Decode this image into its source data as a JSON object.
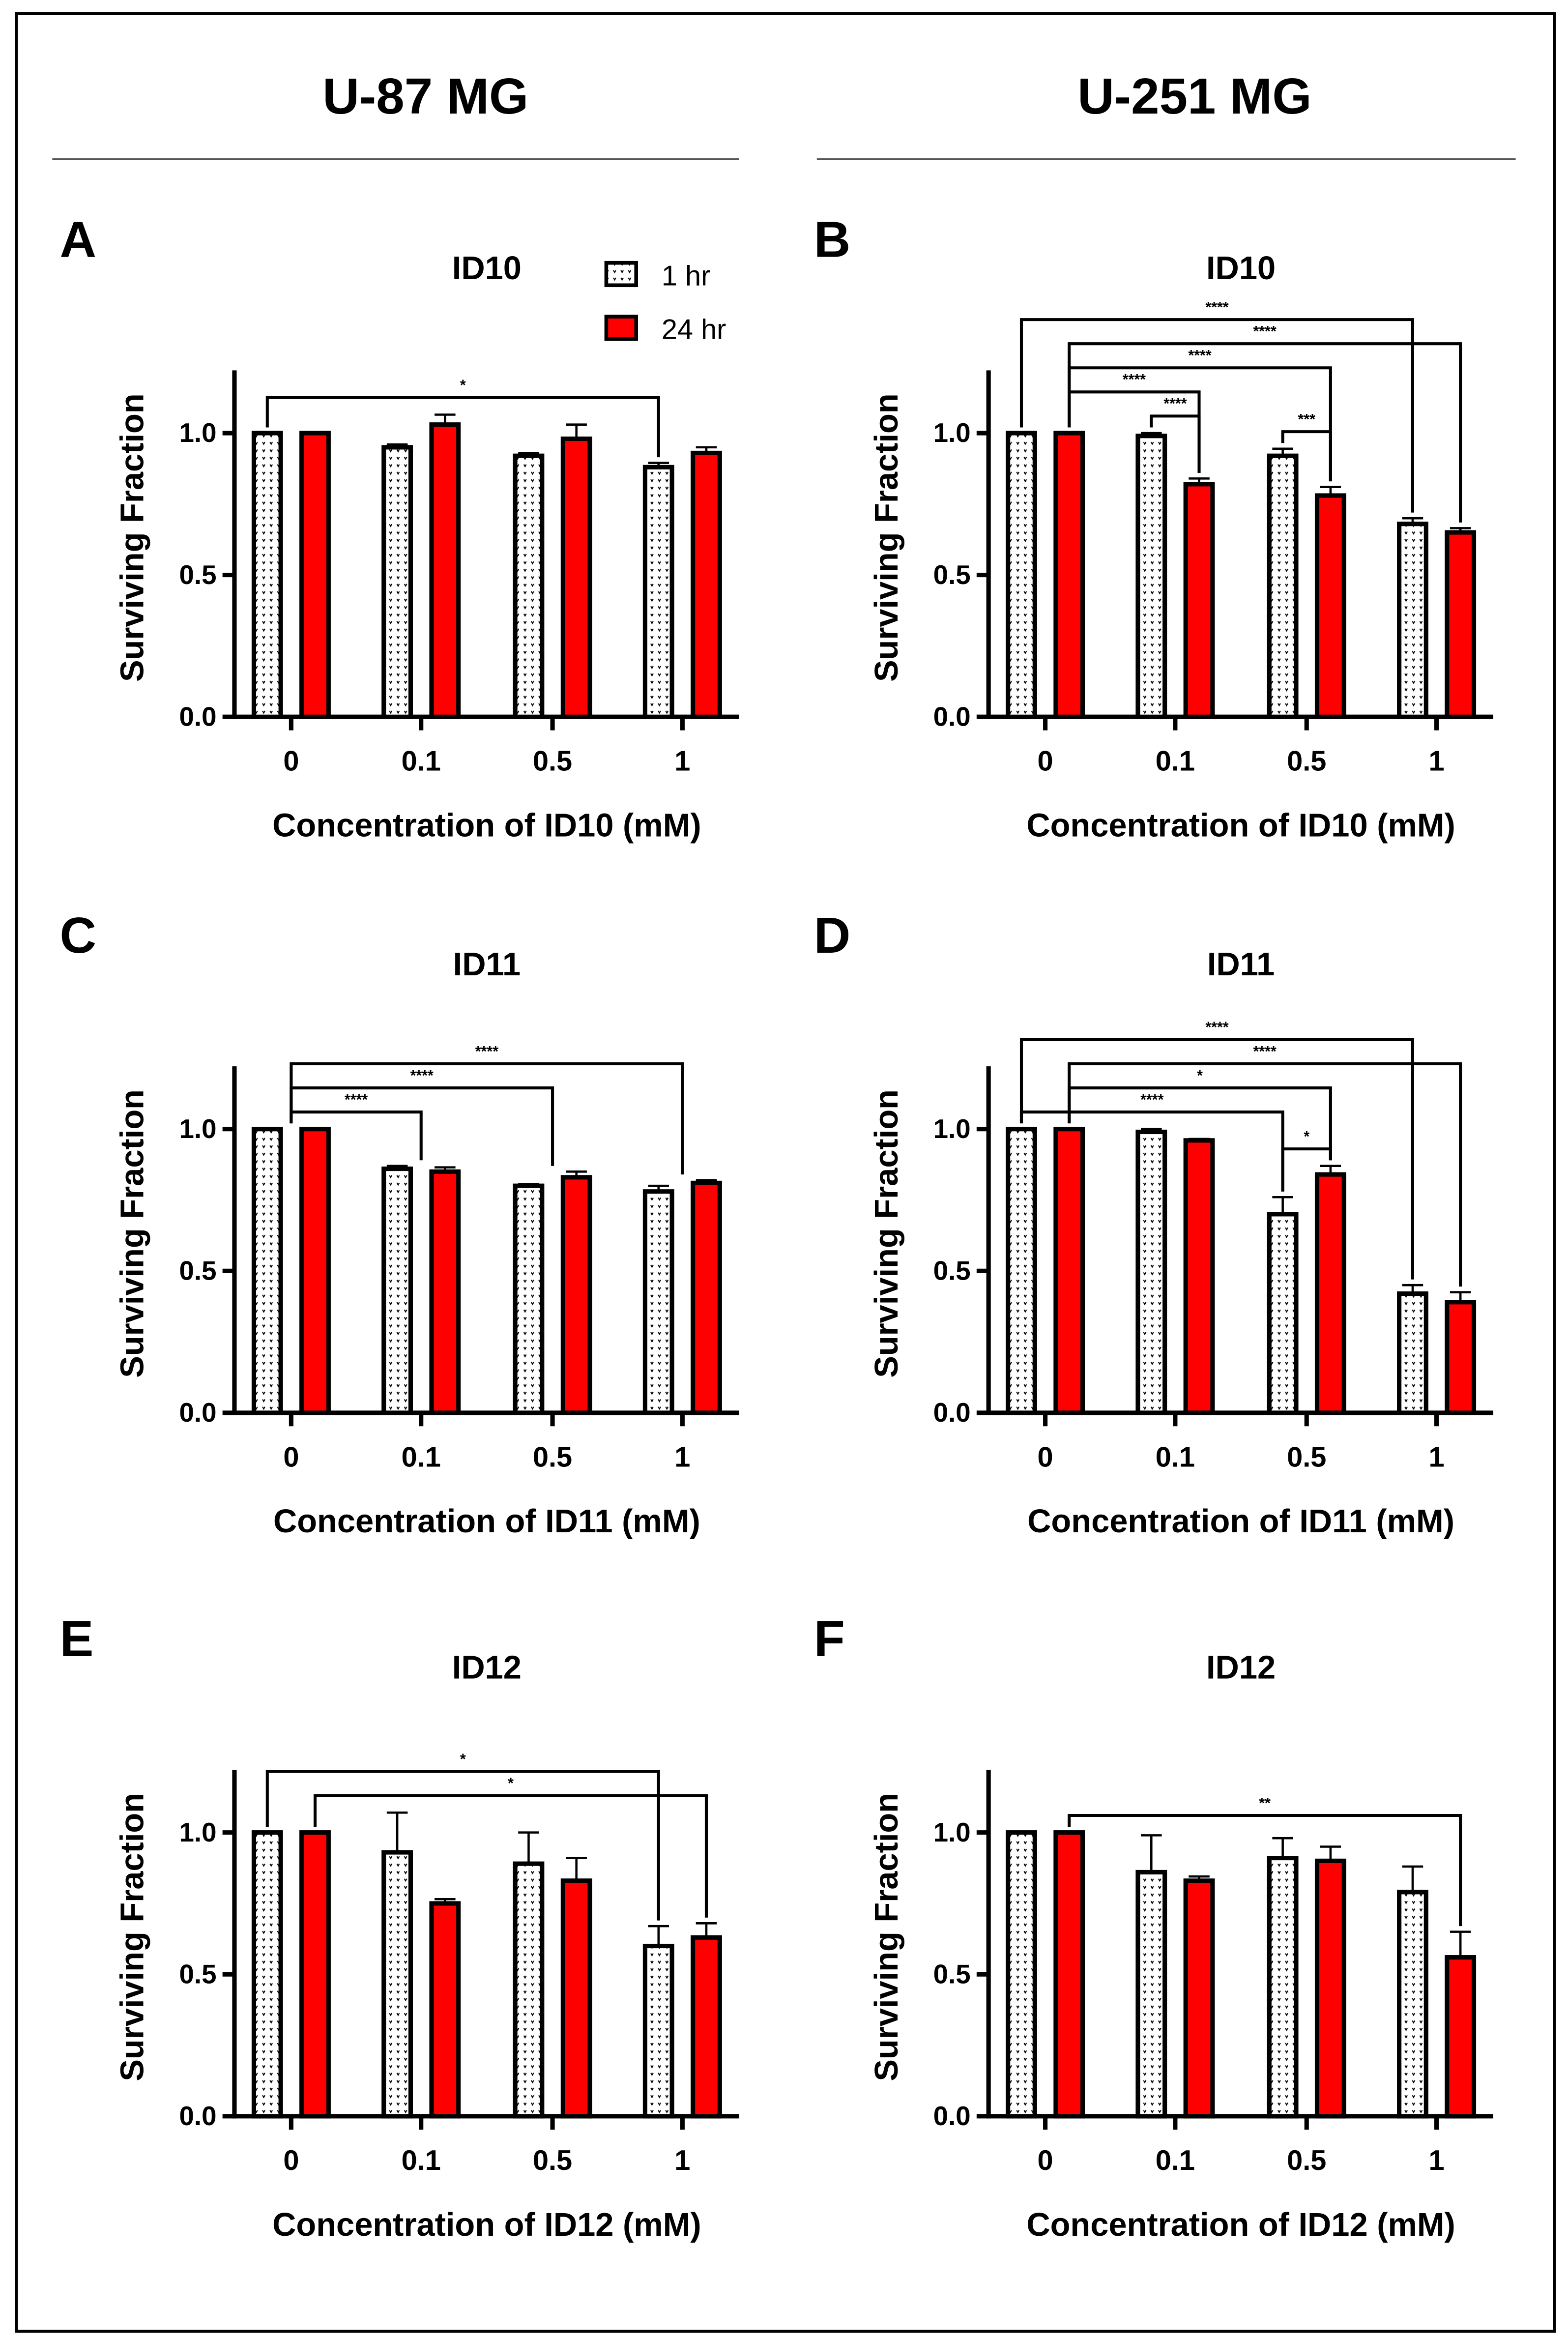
{
  "columns": [
    {
      "title": "U-87 MG"
    },
    {
      "title": "U-251 MG"
    }
  ],
  "legend": [
    {
      "label": "1 hr",
      "fill": "pattern"
    },
    {
      "label": "24 hr",
      "fill": "#ff0000"
    }
  ],
  "colors": {
    "series_24hr": "#ff0000",
    "series_1hr_bg": "#ffffff",
    "axis": "#000000"
  },
  "chart_data": [
    {
      "panel": "A",
      "type": "bar",
      "title": "ID10",
      "xlabel": "Concentration of ID10 (mM)",
      "ylabel": "Surviving Fraction",
      "ylim": [
        0,
        1.2
      ],
      "yticks": [
        "0.0",
        "0.5",
        "1.0"
      ],
      "categories": [
        "0",
        "0.1",
        "0.5",
        "1"
      ],
      "series": [
        {
          "name": "1 hr",
          "values": [
            1.0,
            0.95,
            0.92,
            0.88
          ],
          "errors": [
            0,
            0.01,
            0.01,
            0.015
          ]
        },
        {
          "name": "24 hr",
          "values": [
            1.0,
            1.03,
            0.98,
            0.93
          ],
          "errors": [
            0,
            0.035,
            0.05,
            0.02
          ]
        }
      ],
      "significance": [
        {
          "from": [
            0,
            0
          ],
          "to": [
            3,
            0
          ],
          "label": "*"
        }
      ],
      "legend": true
    },
    {
      "panel": "B",
      "type": "bar",
      "title": "ID10",
      "xlabel": "Concentration of ID10 (mM)",
      "ylabel": "Surviving Fraction",
      "ylim": [
        0,
        1.2
      ],
      "yticks": [
        "0.0",
        "0.5",
        "1.0"
      ],
      "categories": [
        "0",
        "0.1",
        "0.5",
        "1"
      ],
      "series": [
        {
          "name": "1 hr",
          "values": [
            1.0,
            0.99,
            0.92,
            0.68
          ],
          "errors": [
            0,
            0.01,
            0.025,
            0.02
          ]
        },
        {
          "name": "24 hr",
          "values": [
            1.0,
            0.82,
            0.78,
            0.65
          ],
          "errors": [
            0,
            0.02,
            0.03,
            0.015
          ]
        }
      ],
      "significance": [
        {
          "from": [
            1,
            0
          ],
          "to": [
            1,
            1
          ],
          "label": "****"
        },
        {
          "from": [
            2,
            0
          ],
          "to": [
            2,
            1
          ],
          "label": "***"
        },
        {
          "from": [
            0,
            1
          ],
          "to": [
            1,
            1
          ],
          "label": "****"
        },
        {
          "from": [
            0,
            1
          ],
          "to": [
            2,
            1
          ],
          "label": "****"
        },
        {
          "from": [
            0,
            1
          ],
          "to": [
            3,
            1
          ],
          "label": "****"
        },
        {
          "from": [
            0,
            0
          ],
          "to": [
            3,
            0
          ],
          "label": "****"
        }
      ]
    },
    {
      "panel": "C",
      "type": "bar",
      "title": "ID11",
      "xlabel": "Concentration of ID11 (mM)",
      "ylabel": "Surviving Fraction",
      "ylim": [
        0,
        1.2
      ],
      "yticks": [
        "0.0",
        "0.5",
        "1.0"
      ],
      "categories": [
        "0",
        "0.1",
        "0.5",
        "1"
      ],
      "series": [
        {
          "name": "1 hr",
          "values": [
            1.0,
            0.86,
            0.8,
            0.78
          ],
          "errors": [
            0,
            0.01,
            0.005,
            0.02
          ]
        },
        {
          "name": "24 hr",
          "values": [
            1.0,
            0.85,
            0.83,
            0.81
          ],
          "errors": [
            0,
            0.015,
            0.02,
            0.01
          ]
        }
      ],
      "significance": [
        {
          "from": [
            0,
            null
          ],
          "to": [
            1,
            null
          ],
          "label": "****"
        },
        {
          "from": [
            0,
            null
          ],
          "to": [
            2,
            null
          ],
          "label": "****"
        },
        {
          "from": [
            0,
            null
          ],
          "to": [
            3,
            null
          ],
          "label": "****"
        }
      ]
    },
    {
      "panel": "D",
      "type": "bar",
      "title": "ID11",
      "xlabel": "Concentration of ID11 (mM)",
      "ylabel": "Surviving Fraction",
      "ylim": [
        0,
        1.2
      ],
      "yticks": [
        "0.0",
        "0.5",
        "1.0"
      ],
      "categories": [
        "0",
        "0.1",
        "0.5",
        "1"
      ],
      "series": [
        {
          "name": "1 hr",
          "values": [
            1.0,
            0.99,
            0.7,
            0.42
          ],
          "errors": [
            0,
            0.01,
            0.06,
            0.03
          ]
        },
        {
          "name": "24 hr",
          "values": [
            1.0,
            0.96,
            0.84,
            0.39
          ],
          "errors": [
            0,
            0.005,
            0.03,
            0.035
          ]
        }
      ],
      "significance": [
        {
          "from": [
            2,
            0
          ],
          "to": [
            2,
            1
          ],
          "label": "*"
        },
        {
          "from": [
            0,
            0
          ],
          "to": [
            2,
            0
          ],
          "label": "****"
        },
        {
          "from": [
            0,
            1
          ],
          "to": [
            2,
            1
          ],
          "label": "*"
        },
        {
          "from": [
            0,
            1
          ],
          "to": [
            3,
            1
          ],
          "label": "****"
        },
        {
          "from": [
            0,
            0
          ],
          "to": [
            3,
            0
          ],
          "label": "****"
        }
      ]
    },
    {
      "panel": "E",
      "type": "bar",
      "title": "ID12",
      "xlabel": "Concentration of ID12 (mM)",
      "ylabel": "Surviving Fraction",
      "ylim": [
        0,
        1.2
      ],
      "yticks": [
        "0.0",
        "0.5",
        "1.0"
      ],
      "categories": [
        "0",
        "0.1",
        "0.5",
        "1"
      ],
      "series": [
        {
          "name": "1 hr",
          "values": [
            1.0,
            0.93,
            0.89,
            0.6
          ],
          "errors": [
            0,
            0.14,
            0.11,
            0.07
          ]
        },
        {
          "name": "24 hr",
          "values": [
            1.0,
            0.75,
            0.83,
            0.63
          ],
          "errors": [
            0,
            0.015,
            0.08,
            0.05
          ]
        }
      ],
      "significance": [
        {
          "from": [
            0,
            1
          ],
          "to": [
            3,
            1
          ],
          "label": "*"
        },
        {
          "from": [
            0,
            0
          ],
          "to": [
            3,
            0
          ],
          "label": "*"
        }
      ]
    },
    {
      "panel": "F",
      "type": "bar",
      "title": "ID12",
      "xlabel": "Concentration of ID12 (mM)",
      "ylabel": "Surviving Fraction",
      "ylim": [
        0,
        1.2
      ],
      "yticks": [
        "0.0",
        "0.5",
        "1.0"
      ],
      "categories": [
        "0",
        "0.1",
        "0.5",
        "1"
      ],
      "series": [
        {
          "name": "1 hr",
          "values": [
            1.0,
            0.86,
            0.91,
            0.79
          ],
          "errors": [
            0,
            0.13,
            0.07,
            0.09
          ]
        },
        {
          "name": "24 hr",
          "values": [
            1.0,
            0.83,
            0.9,
            0.56
          ],
          "errors": [
            0,
            0.015,
            0.05,
            0.09
          ]
        }
      ],
      "significance": [
        {
          "from": [
            0,
            1
          ],
          "to": [
            3,
            1
          ],
          "label": "**"
        }
      ]
    }
  ]
}
